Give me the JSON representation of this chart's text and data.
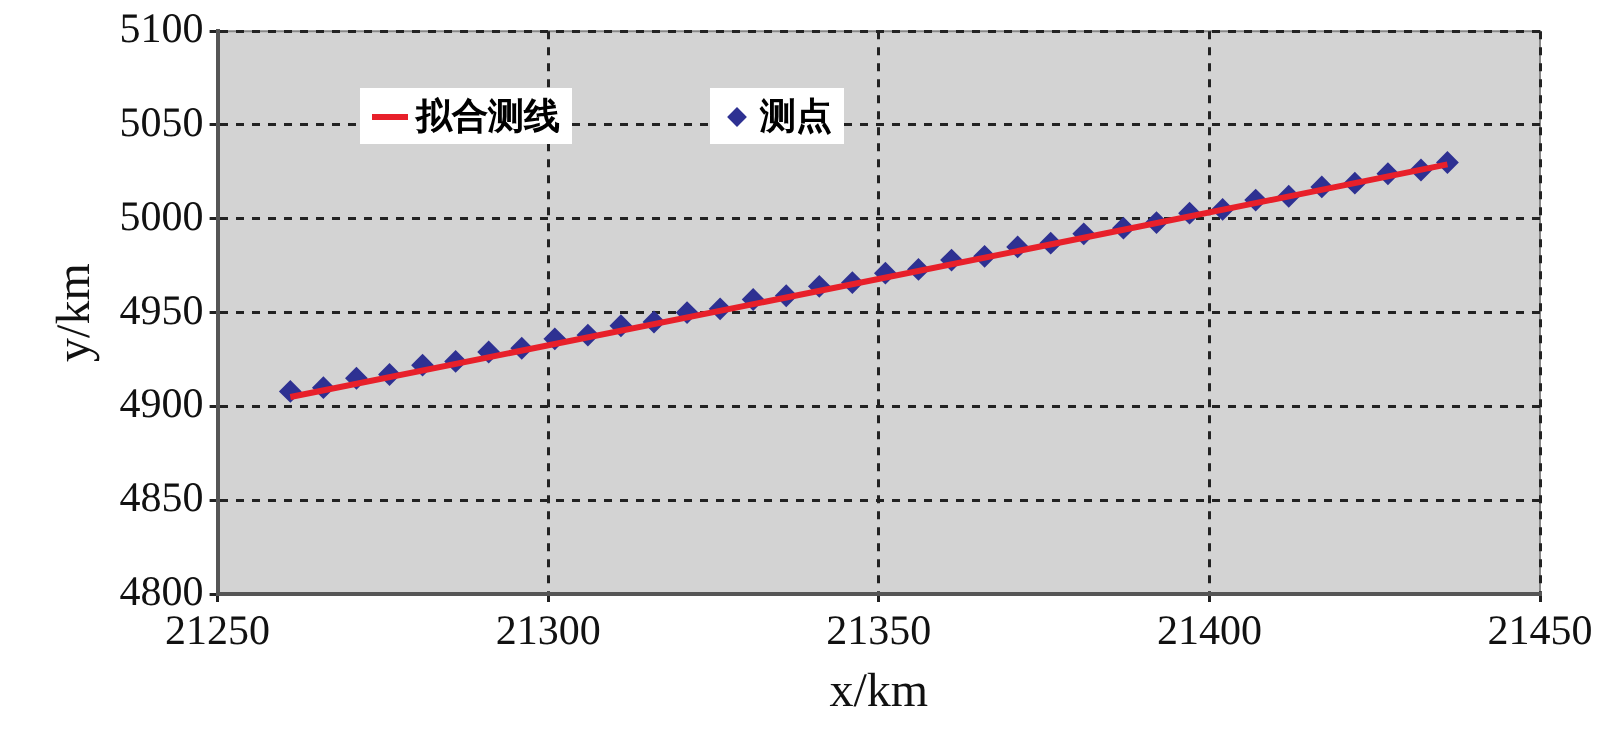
{
  "chart_data": {
    "type": "scatter",
    "xlabel": "x/km",
    "ylabel": "y/km",
    "xlim": [
      21250,
      21450
    ],
    "xticks": [
      21250,
      21300,
      21350,
      21400,
      21450
    ],
    "ylim": [
      4800,
      5100
    ],
    "yticks": [
      4800,
      4850,
      4900,
      4950,
      5000,
      5050,
      5100
    ],
    "grid": true,
    "legend": "top left",
    "series": [
      {
        "name": "拟合测线",
        "type": "line",
        "color": "#e8202a",
        "marker": "none",
        "x": [
          21261,
          21384,
          21436
        ],
        "values": [
          4905,
          4992,
          5029
        ]
      },
      {
        "name": "测点",
        "color": "#2e3192",
        "marker": "diamond",
        "x": [
          21261,
          21266,
          21271,
          21276,
          21281,
          21286,
          21291,
          21296,
          21301,
          21306,
          21311,
          21316,
          21321,
          21326,
          21331,
          21336,
          21341,
          21346,
          21351,
          21356,
          21361,
          21366,
          21371,
          21376,
          21381,
          21387,
          21392,
          21397,
          21402,
          21407,
          21412,
          21417,
          21422,
          21427,
          21432,
          21436
        ],
        "values": [
          4908,
          4910,
          4915,
          4917,
          4922,
          4924,
          4929,
          4931,
          4936,
          4938,
          4943,
          4945,
          4950,
          4952,
          4957,
          4959,
          4964,
          4966,
          4971,
          4973,
          4978,
          4980,
          4985,
          4987,
          4992,
          4995,
          4998,
          5003,
          5005,
          5010,
          5012,
          5017,
          5019,
          5024,
          5026,
          5030
        ]
      }
    ]
  }
}
